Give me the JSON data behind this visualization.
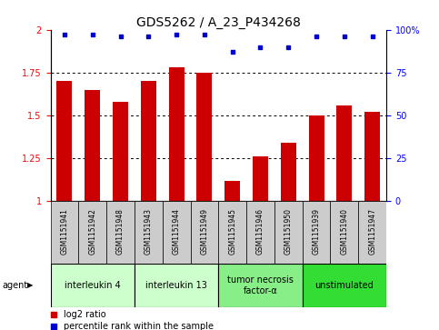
{
  "title": "GDS5262 / A_23_P434268",
  "samples": [
    "GSM1151941",
    "GSM1151942",
    "GSM1151948",
    "GSM1151943",
    "GSM1151944",
    "GSM1151949",
    "GSM1151945",
    "GSM1151946",
    "GSM1151950",
    "GSM1151939",
    "GSM1151940",
    "GSM1151947"
  ],
  "log2_values": [
    1.7,
    1.65,
    1.58,
    1.7,
    1.78,
    1.75,
    1.12,
    1.26,
    1.34,
    1.5,
    1.56,
    1.52
  ],
  "percentile_values": [
    97,
    97,
    96,
    96,
    97,
    97,
    87,
    90,
    90,
    96,
    96,
    96
  ],
  "groups": [
    {
      "label": "interleukin 4",
      "start": 0,
      "end": 3,
      "color": "#ccffcc"
    },
    {
      "label": "interleukin 13",
      "start": 3,
      "end": 6,
      "color": "#ccffcc"
    },
    {
      "label": "tumor necrosis\nfactor-α",
      "start": 6,
      "end": 9,
      "color": "#88ee88"
    },
    {
      "label": "unstimulated",
      "start": 9,
      "end": 12,
      "color": "#33dd33"
    }
  ],
  "bar_color": "#cc0000",
  "dot_color": "#0000cc",
  "sample_box_color": "#cccccc",
  "ylim_left": [
    1.0,
    2.0
  ],
  "ylim_right": [
    0,
    100
  ],
  "yticks_left": [
    1.0,
    1.25,
    1.5,
    1.75,
    2.0
  ],
  "yticks_right": [
    0,
    25,
    50,
    75,
    100
  ],
  "ytick_labels_left": [
    "1",
    "1.25",
    "1.5",
    "1.75",
    "2"
  ],
  "ytick_labels_right": [
    "0",
    "25",
    "50",
    "75",
    "100%"
  ],
  "grid_values": [
    1.25,
    1.5,
    1.75
  ],
  "bar_width": 0.55,
  "agent_label": "agent",
  "legend_log2": "log2 ratio",
  "legend_pct": "percentile rank within the sample",
  "title_fontsize": 10,
  "axis_fontsize": 7,
  "sample_fontsize": 5.5,
  "group_fontsize": 7,
  "legend_fontsize": 7
}
